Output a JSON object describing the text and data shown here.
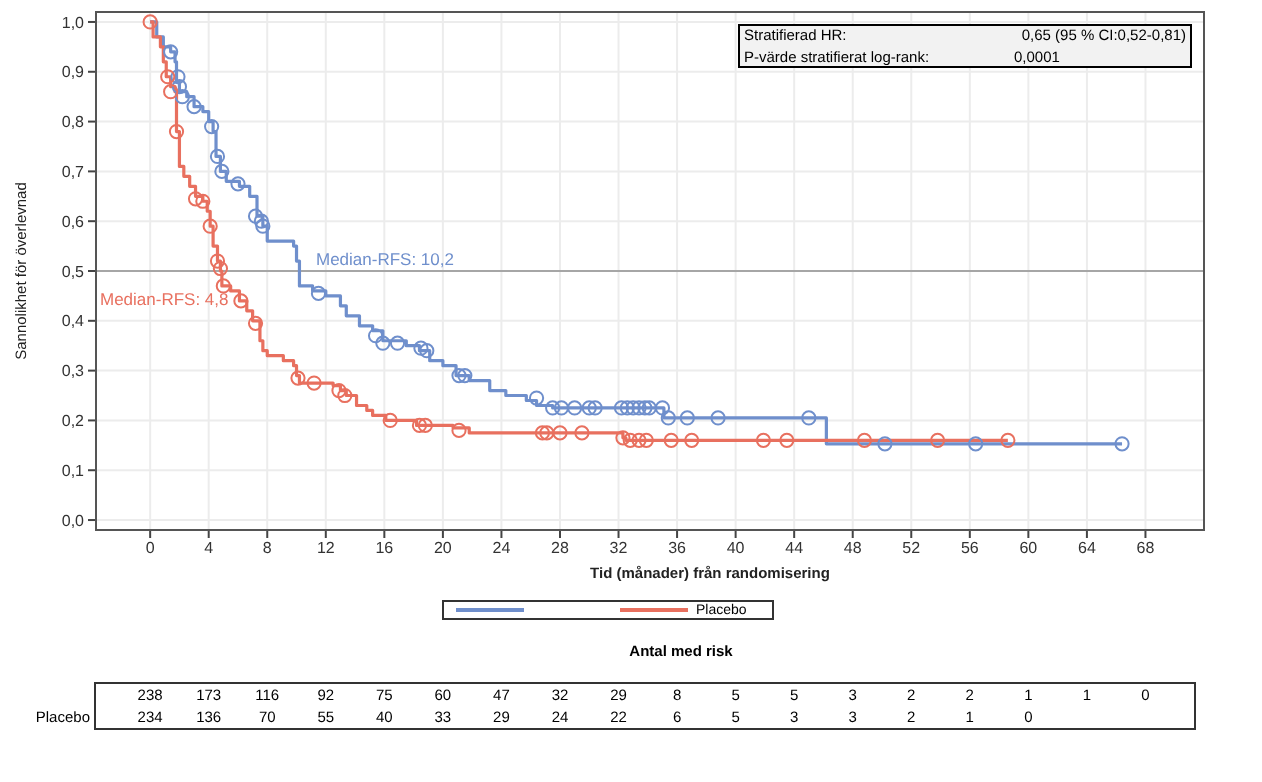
{
  "chart_data": {
    "type": "step",
    "ylabel": "Sannolikhet för överlevnad",
    "xlabel": "Tid (månader) från randomisering",
    "xlim": [
      -3.7,
      72
    ],
    "xticks": [
      0,
      4,
      8,
      12,
      16,
      20,
      24,
      28,
      32,
      36,
      40,
      44,
      48,
      52,
      56,
      60,
      64,
      68
    ],
    "ylim": [
      -0.02,
      1.02
    ],
    "yticks": [
      {
        "value": 0,
        "label": "0,0"
      },
      {
        "value": 0.1,
        "label": "0,1"
      },
      {
        "value": 0.2,
        "label": "0,2"
      },
      {
        "value": 0.3,
        "label": "0,3"
      },
      {
        "value": 0.4,
        "label": "0,4"
      },
      {
        "value": 0.5,
        "label": "0,5"
      },
      {
        "value": 0.6,
        "label": "0,6"
      },
      {
        "value": 0.7,
        "label": "0,7"
      },
      {
        "value": 0.8,
        "label": "0,8"
      },
      {
        "value": 0.9,
        "label": "0,9"
      },
      {
        "value": 1,
        "label": "1,0"
      }
    ],
    "grid": true,
    "legend": "bottom",
    "ref_lines": [
      {
        "axis": "y",
        "value": 0.5,
        "color": "#a6a6a6"
      }
    ],
    "series": [
      {
        "color": "#6f8fcc",
        "x": [
          0,
          0.45,
          0.9,
          1.4,
          1.7,
          1.8,
          2,
          2.5,
          3,
          3.6,
          4,
          4.3,
          4.5,
          4.8,
          5.2,
          6.1,
          6.8,
          7.3,
          7.7,
          8,
          9.8,
          10,
          10.2,
          11.1,
          12,
          13,
          13.4,
          14.3,
          15.2,
          15.9,
          17.5,
          18.4,
          19.1,
          20,
          20.9,
          21.8,
          23.2,
          24.3,
          25.7,
          26.4,
          27.5,
          35.1,
          46.2,
          66.4
        ],
        "values": [
          1,
          0.97,
          0.95,
          0.94,
          0.92,
          0.88,
          0.86,
          0.85,
          0.83,
          0.82,
          0.8,
          0.78,
          0.73,
          0.7,
          0.68,
          0.67,
          0.65,
          0.61,
          0.59,
          0.56,
          0.55,
          0.52,
          0.47,
          0.46,
          0.45,
          0.43,
          0.41,
          0.39,
          0.38,
          0.36,
          0.35,
          0.34,
          0.32,
          0.31,
          0.29,
          0.28,
          0.26,
          0.25,
          0.24,
          0.23,
          0.225,
          0.205,
          0.153,
          0.153
        ]
      },
      {
        "name": "Placebo",
        "color": "#e8705f",
        "x": [
          0,
          0.2,
          0.7,
          0.9,
          1.1,
          1.4,
          1.7,
          1.8,
          2,
          2.3,
          2.7,
          3.1,
          3.6,
          3.9,
          4.1,
          4.3,
          4.6,
          4.8,
          4.9,
          5.5,
          6.1,
          6.6,
          7,
          7.5,
          7.7,
          8,
          9.1,
          9.8,
          10,
          10.2,
          12.5,
          13,
          13.4,
          14.1,
          14.8,
          15.2,
          16.1,
          18.2,
          20.7,
          21.8,
          32.3,
          32.5,
          58.6
        ],
        "values": [
          1,
          0.97,
          0.95,
          0.92,
          0.89,
          0.87,
          0.86,
          0.78,
          0.71,
          0.69,
          0.67,
          0.65,
          0.64,
          0.62,
          0.59,
          0.55,
          0.52,
          0.5,
          0.47,
          0.46,
          0.44,
          0.42,
          0.4,
          0.36,
          0.34,
          0.33,
          0.32,
          0.31,
          0.29,
          0.275,
          0.27,
          0.26,
          0.25,
          0.23,
          0.22,
          0.21,
          0.2,
          0.19,
          0.185,
          0.175,
          0.165,
          0.16,
          0.16
        ]
      },
      {
        "type": "scatter",
        "marker": "circle",
        "color": "#6f8fcc",
        "x": [
          1.4,
          1.9,
          2,
          2.2,
          3,
          4.2,
          4.6,
          4.9,
          6,
          7.2,
          7.6,
          7.7,
          11.5,
          15.4,
          15.9,
          16.9,
          18.5,
          18.9,
          21.1,
          21.5,
          26.4,
          27.5,
          28.1,
          29,
          30,
          30.4,
          32.2,
          32.6,
          33,
          33.4,
          33.8,
          34.1,
          35,
          35.4,
          36.7,
          38.8,
          45,
          50.2,
          56.4,
          66.4
        ],
        "values": [
          0.94,
          0.89,
          0.87,
          0.85,
          0.83,
          0.79,
          0.73,
          0.7,
          0.675,
          0.61,
          0.6,
          0.59,
          0.455,
          0.37,
          0.355,
          0.355,
          0.345,
          0.34,
          0.29,
          0.29,
          0.245,
          0.225,
          0.225,
          0.225,
          0.225,
          0.225,
          0.225,
          0.225,
          0.225,
          0.225,
          0.225,
          0.225,
          0.225,
          0.205,
          0.205,
          0.205,
          0.205,
          0.153,
          0.153,
          0.153
        ]
      },
      {
        "type": "scatter",
        "marker": "circle",
        "color": "#e8705f",
        "x": [
          0,
          1.2,
          1.4,
          1.8,
          3.1,
          3.6,
          4.1,
          4.6,
          4.8,
          5,
          6.2,
          7.2,
          10.1,
          11.2,
          12.9,
          13.3,
          16.4,
          18.4,
          18.8,
          21.1,
          26.8,
          27.1,
          28,
          29.5,
          32.3,
          32.8,
          33.4,
          33.9,
          35.6,
          37,
          41.9,
          43.5,
          48.8,
          53.8,
          58.6
        ],
        "values": [
          1,
          0.89,
          0.86,
          0.78,
          0.645,
          0.64,
          0.59,
          0.52,
          0.505,
          0.47,
          0.44,
          0.395,
          0.285,
          0.275,
          0.26,
          0.25,
          0.2,
          0.19,
          0.19,
          0.18,
          0.175,
          0.175,
          0.175,
          0.175,
          0.165,
          0.16,
          0.16,
          0.16,
          0.16,
          0.16,
          0.16,
          0.16,
          0.16,
          0.16,
          0.16
        ]
      }
    ],
    "annotations": [
      "Stratifierad HR:",
      "0,65 (95 % CI:0,52-0,81)",
      "P-värde stratifierat log-rank:",
      "0,0001",
      "Antal med risk",
      "238 173 116 92 75 60 47 32 29 8 5 5 3 2 2 1 1 0",
      "Placebo",
      "234 136 70 55 40 33 29 24 22 6 5 3 3 2 1 0",
      "Median-RFS: 10,2",
      "Median-RFS: 4,8"
    ]
  }
}
